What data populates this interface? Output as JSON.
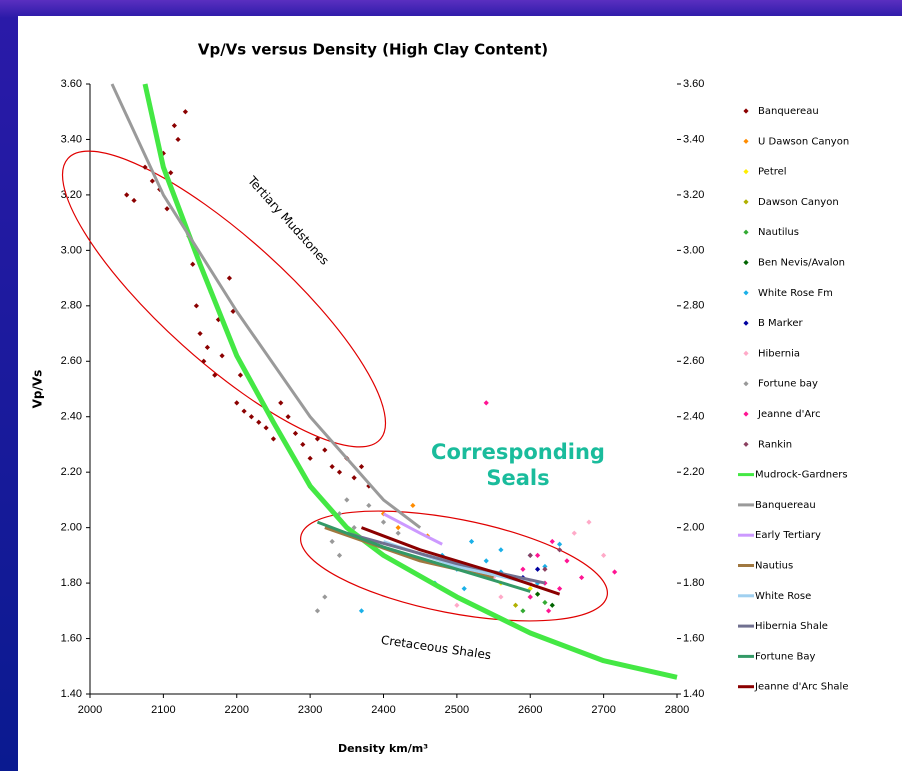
{
  "chart_data": {
    "type": "scatter",
    "title": "Vp/Vs versus Density (High Clay Content)",
    "x_label": "Density km/m³",
    "y_label": "Vp/Vs",
    "xlim": [
      2000,
      2800
    ],
    "xticks": [
      2000,
      2100,
      2200,
      2300,
      2400,
      2500,
      2600,
      2700,
      2800
    ],
    "ylim": [
      1.4,
      3.6
    ],
    "yticks": [
      {
        "value": 1.4,
        "label": "1.40"
      },
      {
        "value": 1.6,
        "label": "1.60"
      },
      {
        "value": 1.8,
        "label": "1.80"
      },
      {
        "value": 2.0,
        "label": "2.00"
      },
      {
        "value": 2.2,
        "label": "2.20"
      },
      {
        "value": 2.4,
        "label": "2.40"
      },
      {
        "value": 2.6,
        "label": "2.60"
      },
      {
        "value": 2.8,
        "label": "2.80"
      },
      {
        "value": 3.0,
        "label": "3.00"
      },
      {
        "value": 3.2,
        "label": "3.20"
      },
      {
        "value": 3.4,
        "label": "3.40"
      },
      {
        "value": 3.6,
        "label": "3.60"
      }
    ],
    "y2lim": [
      1.4,
      3.6
    ],
    "y2ticks": [
      {
        "value": 1.4,
        "label": "1.40"
      },
      {
        "value": 1.6,
        "label": "1.60"
      },
      {
        "value": 1.8,
        "label": "1.80"
      },
      {
        "value": 2.0,
        "label": "2.00"
      },
      {
        "value": 2.2,
        "label": "2.20"
      },
      {
        "value": 2.4,
        "label": "2.40"
      },
      {
        "value": 2.6,
        "label": "2.60"
      },
      {
        "value": 2.8,
        "label": "2.80"
      },
      {
        "value": 3.0,
        "label": "3.00"
      },
      {
        "value": 3.2,
        "label": "3.20"
      },
      {
        "value": 3.4,
        "label": "3.40"
      },
      {
        "value": 3.6,
        "label": "3.60"
      }
    ],
    "legend": "right",
    "annotations": [
      {
        "text": "Tertiary Mudstones"
      },
      {
        "text": "Corresponding Seals"
      },
      {
        "text": "Cretaceous Shales"
      }
    ],
    "series": [
      {
        "name": "Banquereau",
        "type": "scatter",
        "color": "#8b0000",
        "x": [
          2050,
          2060,
          2075,
          2085,
          2095,
          2100,
          2105,
          2110,
          2115,
          2120,
          2125,
          2130,
          2135,
          2140,
          2145,
          2150,
          2155,
          2160,
          2165,
          2170,
          2175,
          2180,
          2190,
          2195,
          2200,
          2205,
          2210,
          2220,
          2230,
          2240,
          2250,
          2260,
          2270,
          2280,
          2290,
          2300,
          2310,
          2320,
          2330,
          2340,
          2350,
          2360,
          2370,
          2380
        ],
        "values": [
          3.2,
          3.18,
          3.3,
          3.25,
          3.22,
          3.35,
          3.15,
          3.28,
          3.45,
          3.4,
          3.1,
          3.5,
          3.05,
          2.95,
          2.8,
          2.7,
          2.6,
          2.65,
          2.85,
          2.55,
          2.75,
          2.62,
          2.9,
          2.78,
          2.45,
          2.55,
          2.42,
          2.4,
          2.38,
          2.36,
          2.32,
          2.45,
          2.4,
          2.34,
          2.3,
          2.25,
          2.32,
          2.28,
          2.22,
          2.2,
          2.25,
          2.18,
          2.22,
          2.15
        ]
      },
      {
        "name": "U Dawson Canyon",
        "type": "scatter",
        "color": "#ff8c00",
        "x": [
          2400,
          2420,
          2440,
          2460
        ],
        "values": [
          2.05,
          2.0,
          2.08,
          1.97
        ]
      },
      {
        "name": "Petrel",
        "type": "scatter",
        "color": "#ffee00",
        "x": [
          2560,
          2600
        ],
        "values": [
          1.8,
          1.78
        ]
      },
      {
        "name": "Dawson Canyon",
        "type": "scatter",
        "color": "#b0b000",
        "x": [
          2580,
          2610
        ],
        "values": [
          1.72,
          1.76
        ]
      },
      {
        "name": "Nautilus",
        "type": "scatter",
        "color": "#33aa33",
        "x": [
          2590,
          2600,
          2620
        ],
        "values": [
          1.7,
          1.75,
          1.73
        ]
      },
      {
        "name": "Ben Nevis/Avalon",
        "type": "scatter",
        "color": "#006400",
        "x": [
          2610,
          2630
        ],
        "values": [
          1.76,
          1.72
        ]
      },
      {
        "name": "White Rose Fm",
        "type": "scatter",
        "color": "#1ab0e8",
        "x": [
          2480,
          2500,
          2520,
          2540,
          2560,
          2580,
          2600,
          2620,
          2640,
          2470,
          2510,
          2560,
          2610,
          2370
        ],
        "values": [
          1.9,
          1.85,
          1.95,
          1.88,
          1.92,
          1.82,
          1.9,
          1.86,
          1.94,
          1.8,
          1.78,
          1.84,
          1.8,
          1.7
        ]
      },
      {
        "name": "B Marker",
        "type": "scatter",
        "color": "#0000a0",
        "x": [
          2590,
          2610
        ],
        "values": [
          1.82,
          1.85
        ]
      },
      {
        "name": "Hibernia",
        "type": "scatter",
        "color": "#ffaac8",
        "x": [
          2500,
          2560,
          2600,
          2660,
          2680,
          2700,
          2550
        ],
        "values": [
          1.72,
          1.75,
          1.8,
          1.98,
          2.02,
          1.9,
          1.82
        ]
      },
      {
        "name": "Fortune bay",
        "type": "scatter",
        "color": "#999999",
        "x": [
          2310,
          2320,
          2330,
          2340,
          2350,
          2360,
          2380,
          2400,
          2420,
          2340
        ],
        "values": [
          1.7,
          1.75,
          1.95,
          2.05,
          2.1,
          2.0,
          2.08,
          2.02,
          1.98,
          1.9
        ]
      },
      {
        "name": "Jeanne d'Arc",
        "type": "scatter",
        "color": "#ff1493",
        "x": [
          2540,
          2590,
          2610,
          2620,
          2630,
          2640,
          2650,
          2600,
          2670,
          2715,
          2625
        ],
        "values": [
          2.45,
          1.85,
          1.9,
          1.8,
          1.95,
          1.78,
          1.88,
          1.75,
          1.82,
          1.84,
          1.7
        ]
      },
      {
        "name": "Rankin",
        "type": "scatter",
        "color": "#8b4060",
        "x": [
          2600,
          2620,
          2640
        ],
        "values": [
          1.9,
          1.85,
          1.92
        ]
      },
      {
        "name": "Mudrock-Gardners",
        "type": "line",
        "color": "#44e844",
        "x": [
          2075,
          2100,
          2150,
          2200,
          2250,
          2300,
          2350,
          2400,
          2500,
          2600,
          2700,
          2800
        ],
        "values": [
          3.6,
          3.3,
          2.95,
          2.62,
          2.38,
          2.15,
          2.0,
          1.9,
          1.75,
          1.62,
          1.52,
          1.46
        ]
      },
      {
        "name": "Banquereau",
        "type": "line",
        "color": "#9a9a9a",
        "x": [
          2030,
          2100,
          2200,
          2300,
          2400,
          2450
        ],
        "values": [
          3.6,
          3.2,
          2.78,
          2.4,
          2.1,
          2.0
        ]
      },
      {
        "name": "Early Tertiary",
        "type": "line",
        "color": "#cc99ff",
        "x": [
          2400,
          2450,
          2480
        ],
        "values": [
          2.05,
          1.98,
          1.94
        ]
      },
      {
        "name": "Nautius",
        "type": "line",
        "color": "#a07840",
        "x": [
          2320,
          2450,
          2550
        ],
        "values": [
          2.0,
          1.88,
          1.82
        ]
      },
      {
        "name": "White Rose",
        "type": "line",
        "color": "#a0d0f0",
        "x": [
          2400,
          2500,
          2600
        ],
        "values": [
          1.95,
          1.86,
          1.8
        ]
      },
      {
        "name": "Hibernia Shale",
        "type": "line",
        "color": "#707090",
        "x": [
          2350,
          2500,
          2620
        ],
        "values": [
          1.98,
          1.87,
          1.8
        ]
      },
      {
        "name": "Fortune Bay",
        "type": "line",
        "color": "#339966",
        "x": [
          2310,
          2400,
          2500,
          2600
        ],
        "values": [
          2.02,
          1.93,
          1.85,
          1.77
        ]
      },
      {
        "name": "Jeanne d'Arc Shale",
        "type": "line",
        "color": "#8b0000",
        "x": [
          2370,
          2450,
          2550,
          2640
        ],
        "values": [
          2.0,
          1.92,
          1.84,
          1.76
        ]
      }
    ]
  }
}
